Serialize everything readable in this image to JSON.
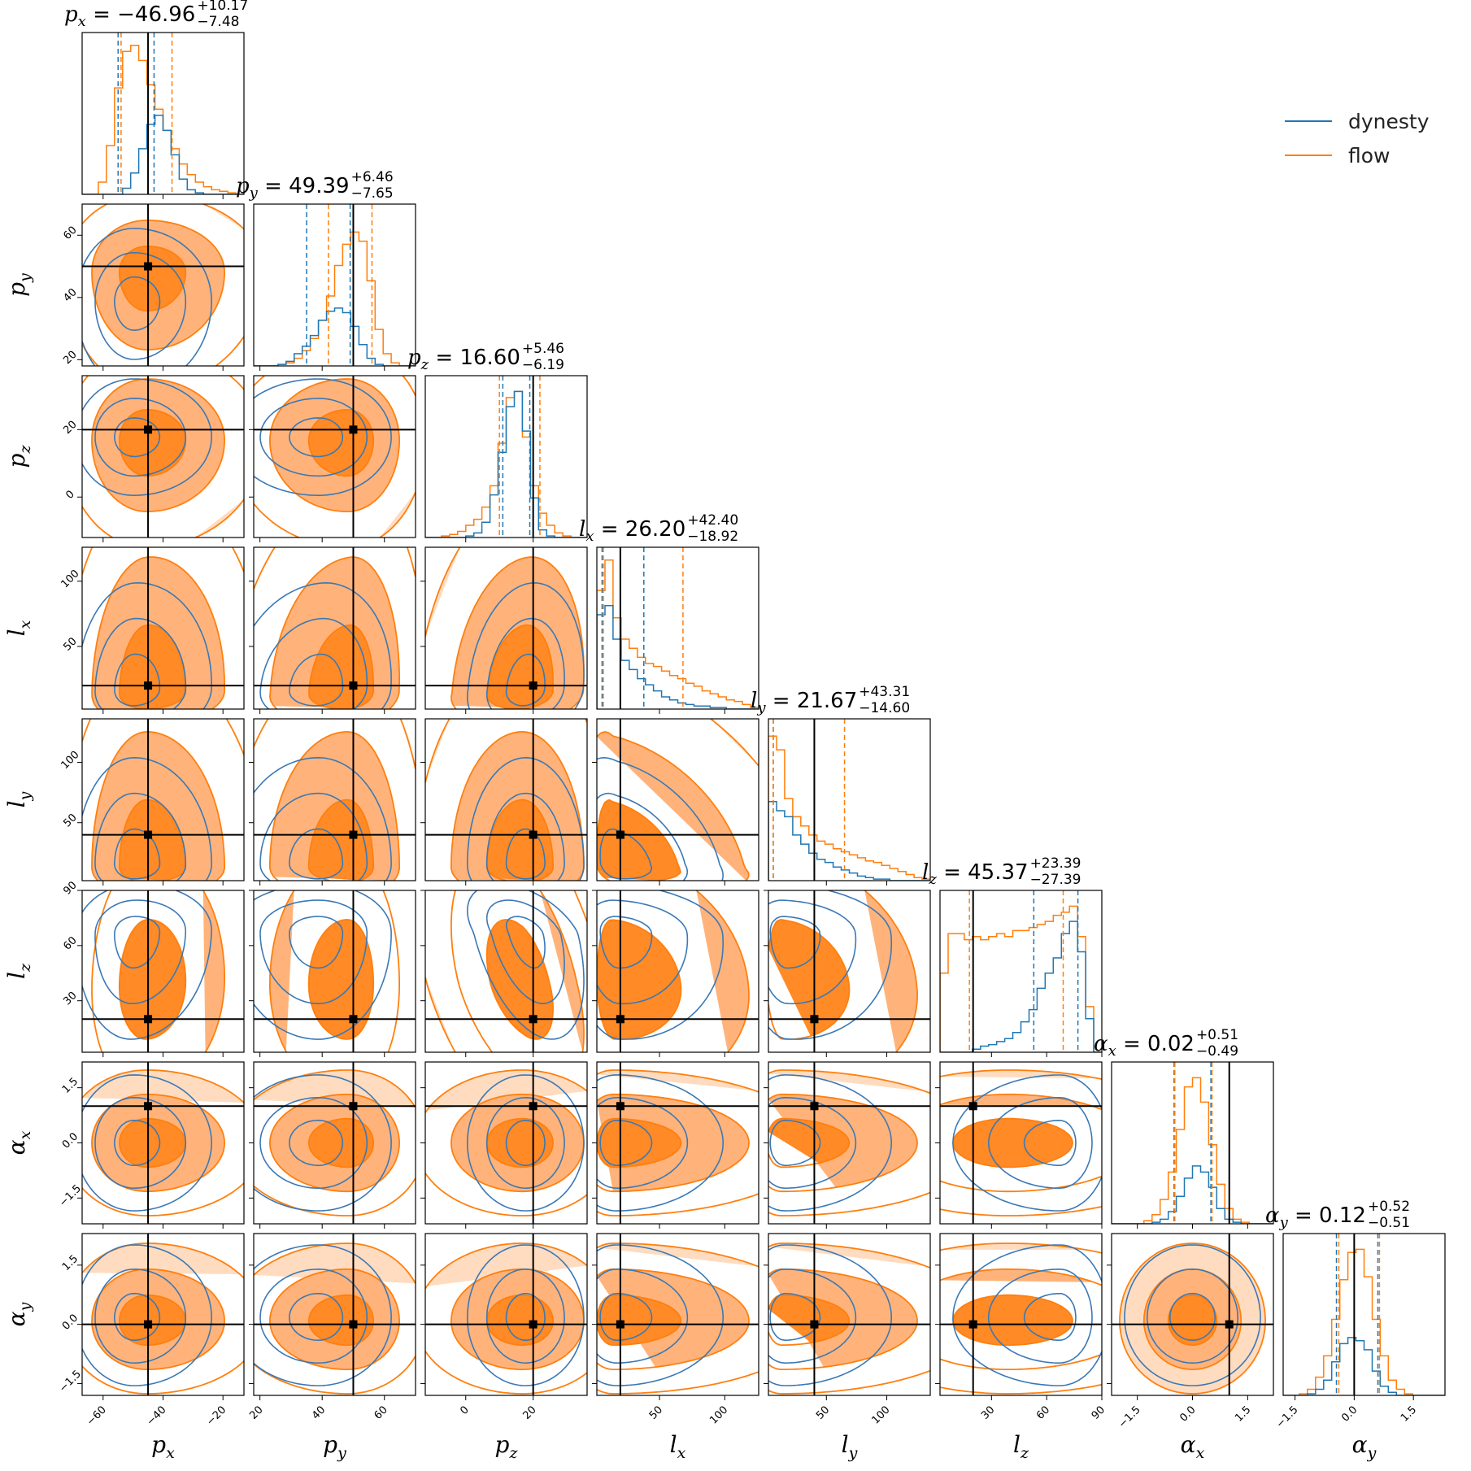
{
  "chart_data": {
    "type": "corner",
    "title": "",
    "parameters": [
      {
        "name": "p_x",
        "label": "p",
        "sub": "x",
        "range": [
          -67,
          -13
        ],
        "ticks": [
          -60,
          -40,
          -20
        ],
        "truth": -45
      },
      {
        "name": "p_y",
        "label": "p",
        "sub": "y",
        "range": [
          18,
          70
        ],
        "ticks": [
          20,
          40,
          60
        ],
        "truth": 50
      },
      {
        "name": "p_z",
        "label": "p",
        "sub": "z",
        "range": [
          -12,
          36
        ],
        "ticks": [
          0,
          20
        ],
        "truth": 20
      },
      {
        "name": "l_x",
        "label": "l",
        "sub": "x",
        "range": [
          2,
          126
        ],
        "ticks": [
          50,
          100
        ],
        "truth": 20
      },
      {
        "name": "l_y",
        "label": "l",
        "sub": "y",
        "range": [
          2,
          136
        ],
        "ticks": [
          50,
          100
        ],
        "truth": 40
      },
      {
        "name": "l_z",
        "label": "l",
        "sub": "z",
        "range": [
          2,
          90
        ],
        "ticks": [
          30,
          60,
          90
        ],
        "truth": 20
      },
      {
        "name": "alpha_x",
        "label": "α",
        "sub": "x",
        "range": [
          -2.2,
          2.2
        ],
        "ticks": [
          -1.5,
          0.0,
          1.5
        ],
        "truth": 1.0
      },
      {
        "name": "alpha_y",
        "label": "α",
        "sub": "y",
        "range": [
          -1.8,
          2.3
        ],
        "ticks": [
          -1.5,
          0.0,
          1.5
        ],
        "truth": 0.0
      }
    ],
    "tick_labels": {
      "p_x": [
        "−60",
        "−40",
        "−20"
      ],
      "p_y": [
        "20",
        "40",
        "60"
      ],
      "p_z": [
        "0",
        "20"
      ],
      "l_x": [
        "50",
        "100"
      ],
      "l_y": [
        "50",
        "100"
      ],
      "l_z": [
        "30",
        "60",
        "90"
      ],
      "alpha_x": [
        "−1.5",
        "0.0",
        "1.5"
      ],
      "alpha_y": [
        "−1.5",
        "0.0",
        "1.5"
      ]
    },
    "titles": [
      {
        "param": "p_x",
        "value": "−46.96",
        "plus": "+10.17",
        "minus": "−7.48"
      },
      {
        "param": "p_y",
        "value": "49.39",
        "plus": "+6.46",
        "minus": "−7.65"
      },
      {
        "param": "p_z",
        "value": "16.60",
        "plus": "+5.46",
        "minus": "−6.19"
      },
      {
        "param": "l_x",
        "value": "26.20",
        "plus": "+42.40",
        "minus": "−18.92"
      },
      {
        "param": "l_y",
        "value": "21.67",
        "plus": "+43.31",
        "minus": "−14.60"
      },
      {
        "param": "l_z",
        "value": "45.37",
        "plus": "+23.39",
        "minus": "−27.39"
      },
      {
        "param": "alpha_x",
        "value": "0.02",
        "plus": "+0.51",
        "minus": "−0.49"
      },
      {
        "param": "alpha_y",
        "value": "0.12",
        "plus": "+0.52",
        "minus": "−0.51"
      }
    ],
    "quantiles": {
      "dynesty": [
        [
          -55,
          -43
        ],
        [
          35,
          49
        ],
        [
          11,
          19
        ],
        [
          6,
          38
        ],
        [
          6,
          40
        ],
        [
          53,
          77
        ],
        [
          -0.5,
          0.5
        ],
        [
          -0.45,
          0.6
        ]
      ],
      "flow": [
        [
          -54,
          -37
        ],
        [
          42,
          56
        ],
        [
          10,
          22
        ],
        [
          7,
          68
        ],
        [
          6,
          65
        ],
        [
          18,
          69
        ],
        [
          -0.48,
          0.53
        ],
        [
          -0.39,
          0.64
        ]
      ]
    },
    "series": [
      {
        "name": "dynesty",
        "color": "#1f77b4",
        "histograms": [
          [
            0,
            0,
            0,
            0,
            0,
            0.04,
            0.14,
            0.3,
            0.46,
            0.52,
            0.42,
            0.26,
            0.1,
            0.03,
            0.01,
            0,
            0,
            0,
            0,
            0
          ],
          [
            0,
            0,
            0,
            0.01,
            0.03,
            0.08,
            0.13,
            0.2,
            0.3,
            0.36,
            0.38,
            0.35,
            0.26,
            0.14,
            0.05,
            0.01,
            0,
            0,
            0,
            0
          ],
          [
            0,
            0,
            0,
            0,
            0,
            0.01,
            0.03,
            0.1,
            0.28,
            0.56,
            0.86,
            0.96,
            0.7,
            0.26,
            0.05,
            0.01,
            0,
            0,
            0,
            0
          ],
          [
            0.62,
            0.68,
            0.46,
            0.32,
            0.26,
            0.2,
            0.16,
            0.12,
            0.08,
            0.06,
            0.04,
            0.03,
            0.02,
            0.02,
            0.01,
            0.01,
            0,
            0,
            0,
            0
          ],
          [
            0.52,
            0.46,
            0.42,
            0.3,
            0.24,
            0.18,
            0.14,
            0.12,
            0.09,
            0.07,
            0.05,
            0.03,
            0.02,
            0.01,
            0.01,
            0,
            0,
            0,
            0,
            0
          ],
          [
            0,
            0,
            0,
            0,
            0.02,
            0.04,
            0.05,
            0.07,
            0.09,
            0.13,
            0.2,
            0.28,
            0.42,
            0.52,
            0.62,
            0.78,
            0.86,
            0.66,
            0.22,
            0
          ],
          [
            0,
            0,
            0,
            0,
            0,
            0.01,
            0.03,
            0.08,
            0.18,
            0.3,
            0.38,
            0.34,
            0.24,
            0.1,
            0.03,
            0.01,
            0,
            0,
            0,
            0
          ],
          [
            0,
            0,
            0,
            0.01,
            0.04,
            0.1,
            0.22,
            0.34,
            0.38,
            0.36,
            0.3,
            0.16,
            0.06,
            0.02,
            0,
            0,
            0,
            0,
            0,
            0
          ]
        ]
      },
      {
        "name": "flow",
        "color": "#ff7f0e",
        "histograms": [
          [
            0,
            0,
            0.08,
            0.32,
            0.7,
            0.94,
            0.98,
            0.88,
            0.72,
            0.56,
            0.42,
            0.3,
            0.2,
            0.13,
            0.08,
            0.05,
            0.03,
            0.02,
            0.01,
            0
          ],
          [
            0,
            0,
            0,
            0.01,
            0.02,
            0.05,
            0.1,
            0.18,
            0.3,
            0.46,
            0.66,
            0.8,
            0.88,
            0.82,
            0.56,
            0.24,
            0.08,
            0.02,
            0,
            0
          ],
          [
            0,
            0,
            0.01,
            0.02,
            0.04,
            0.08,
            0.12,
            0.2,
            0.34,
            0.62,
            0.92,
            0.96,
            0.66,
            0.34,
            0.16,
            0.08,
            0.03,
            0.01,
            0,
            0
          ],
          [
            0.78,
            0.98,
            0.6,
            0.46,
            0.4,
            0.34,
            0.3,
            0.28,
            0.25,
            0.22,
            0.2,
            0.17,
            0.15,
            0.12,
            0.1,
            0.08,
            0.06,
            0.05,
            0.03,
            0.01
          ],
          [
            0.95,
            0.86,
            0.54,
            0.42,
            0.36,
            0.3,
            0.26,
            0.24,
            0.21,
            0.19,
            0.17,
            0.15,
            0.13,
            0.12,
            0.1,
            0.08,
            0.06,
            0.04,
            0.02,
            0.01
          ],
          [
            0.52,
            0.78,
            0.78,
            0.74,
            0.76,
            0.74,
            0.76,
            0.78,
            0.76,
            0.8,
            0.8,
            0.82,
            0.84,
            0.86,
            0.9,
            0.92,
            0.96,
            0.76,
            0.3,
            0
          ],
          [
            0,
            0,
            0,
            0,
            0.02,
            0.06,
            0.16,
            0.34,
            0.62,
            0.9,
            0.96,
            0.8,
            0.52,
            0.26,
            0.1,
            0.03,
            0.01,
            0,
            0,
            0
          ],
          [
            0,
            0,
            0.01,
            0.04,
            0.12,
            0.26,
            0.5,
            0.76,
            0.94,
            0.96,
            0.78,
            0.5,
            0.26,
            0.1,
            0.04,
            0.01,
            0,
            0,
            0,
            0
          ]
        ]
      }
    ],
    "legend": {
      "position": "top-right",
      "entries": [
        "dynesty",
        "flow"
      ]
    }
  },
  "legend": {
    "entries": [
      {
        "label": "dynesty",
        "color": "#1f77b4"
      },
      {
        "label": "flow",
        "color": "#ff7f0e"
      }
    ]
  }
}
